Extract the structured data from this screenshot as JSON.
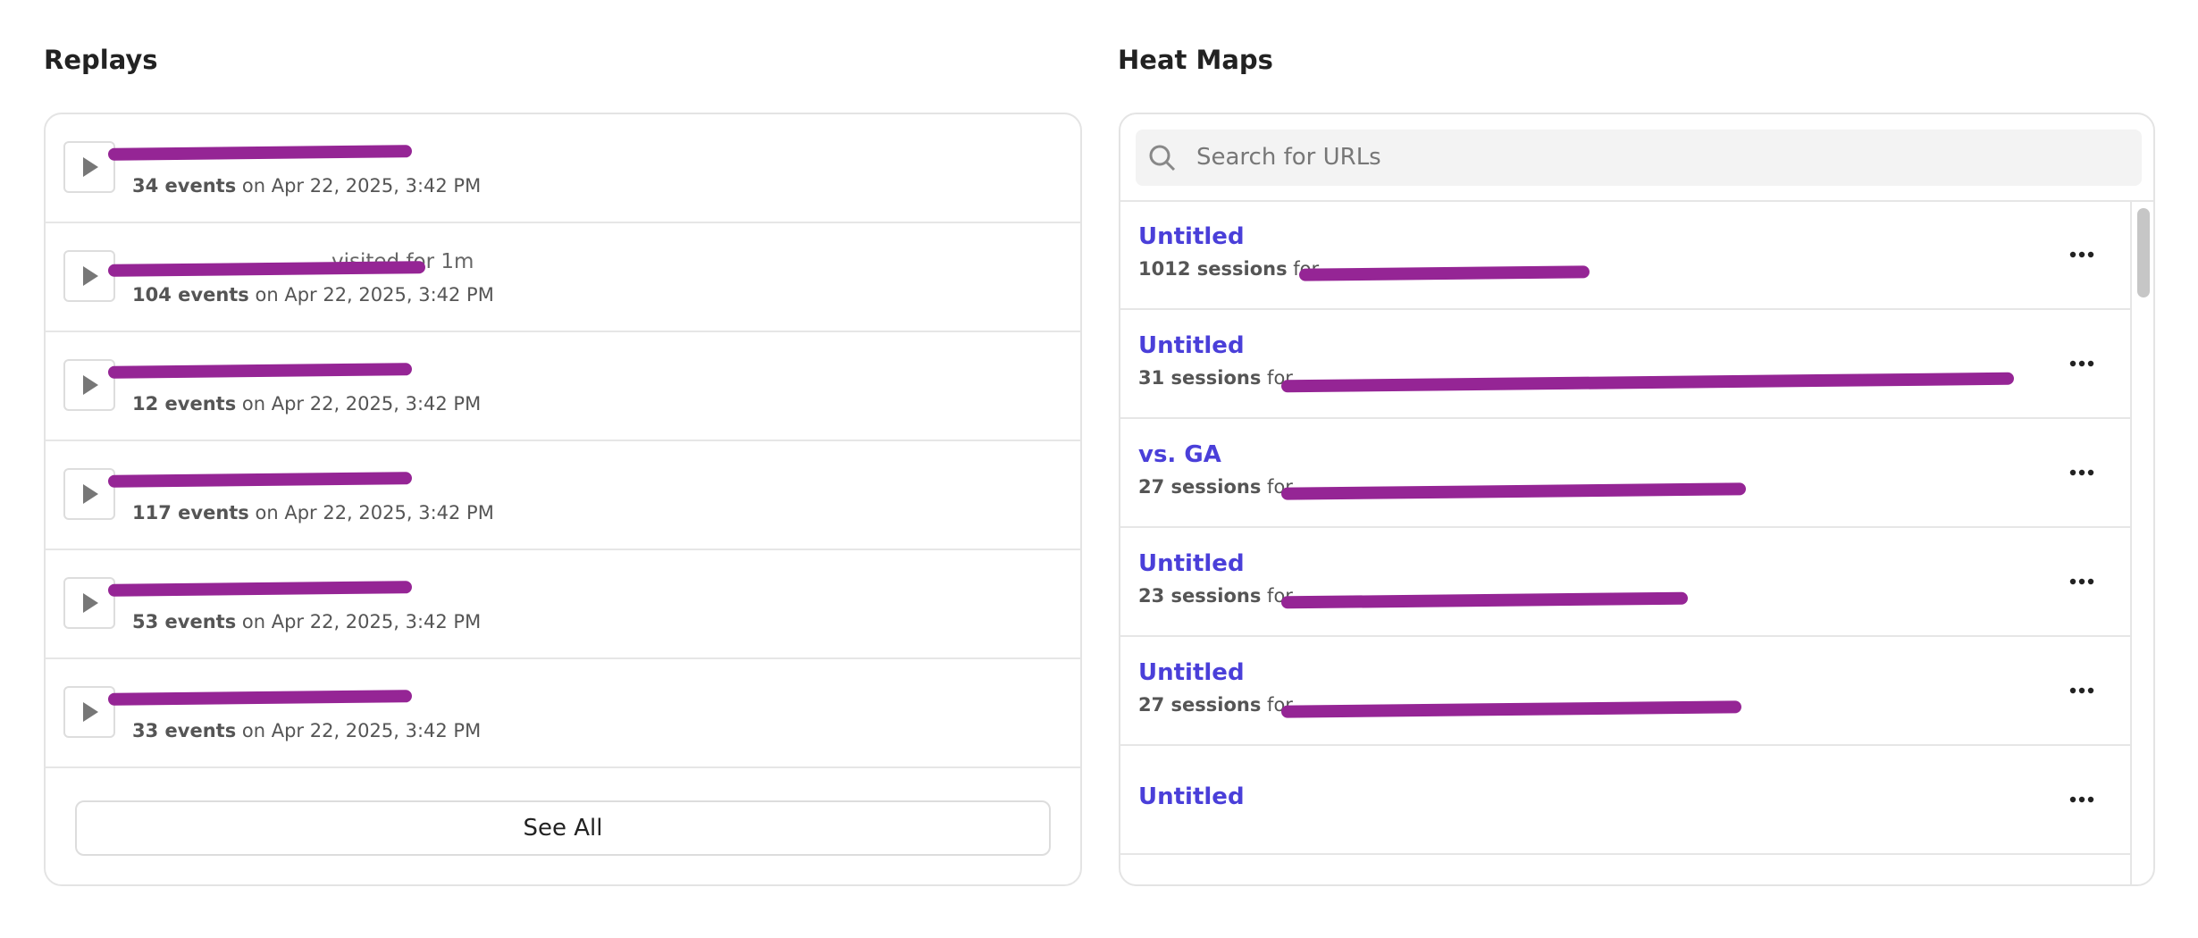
{
  "replays": {
    "title": "Replays",
    "rows": [
      {
        "visited": null,
        "events": "34 events",
        "date": "on Apr 22, 2025, 3:42 PM"
      },
      {
        "visited": "visited for 1m",
        "events": "104 events",
        "date": "on Apr 22, 2025, 3:42 PM"
      },
      {
        "visited": null,
        "events": "12 events",
        "date": "on Apr 22, 2025, 3:42 PM"
      },
      {
        "visited": null,
        "events": "117 events",
        "date": "on Apr 22, 2025, 3:42 PM"
      },
      {
        "visited": null,
        "events": "53 events",
        "date": "on Apr 22, 2025, 3:42 PM"
      },
      {
        "visited": null,
        "events": "33 events",
        "date": "on Apr 22, 2025, 3:42 PM"
      }
    ],
    "see_all": "See All"
  },
  "heat_maps": {
    "title": "Heat Maps",
    "search_placeholder": "Search for URLs",
    "rows": [
      {
        "title": "Untitled",
        "sessions": "1012 sessions",
        "for": "for"
      },
      {
        "title": "Untitled",
        "sessions": "31 sessions",
        "for": "for"
      },
      {
        "title": "vs. GA",
        "sessions": "27 sessions",
        "for": "for"
      },
      {
        "title": "Untitled",
        "sessions": "23 sessions",
        "for": "for"
      },
      {
        "title": "Untitled",
        "sessions": "27 sessions",
        "for": "for"
      },
      {
        "title": "Untitled",
        "sessions": null,
        "for": null
      }
    ]
  }
}
